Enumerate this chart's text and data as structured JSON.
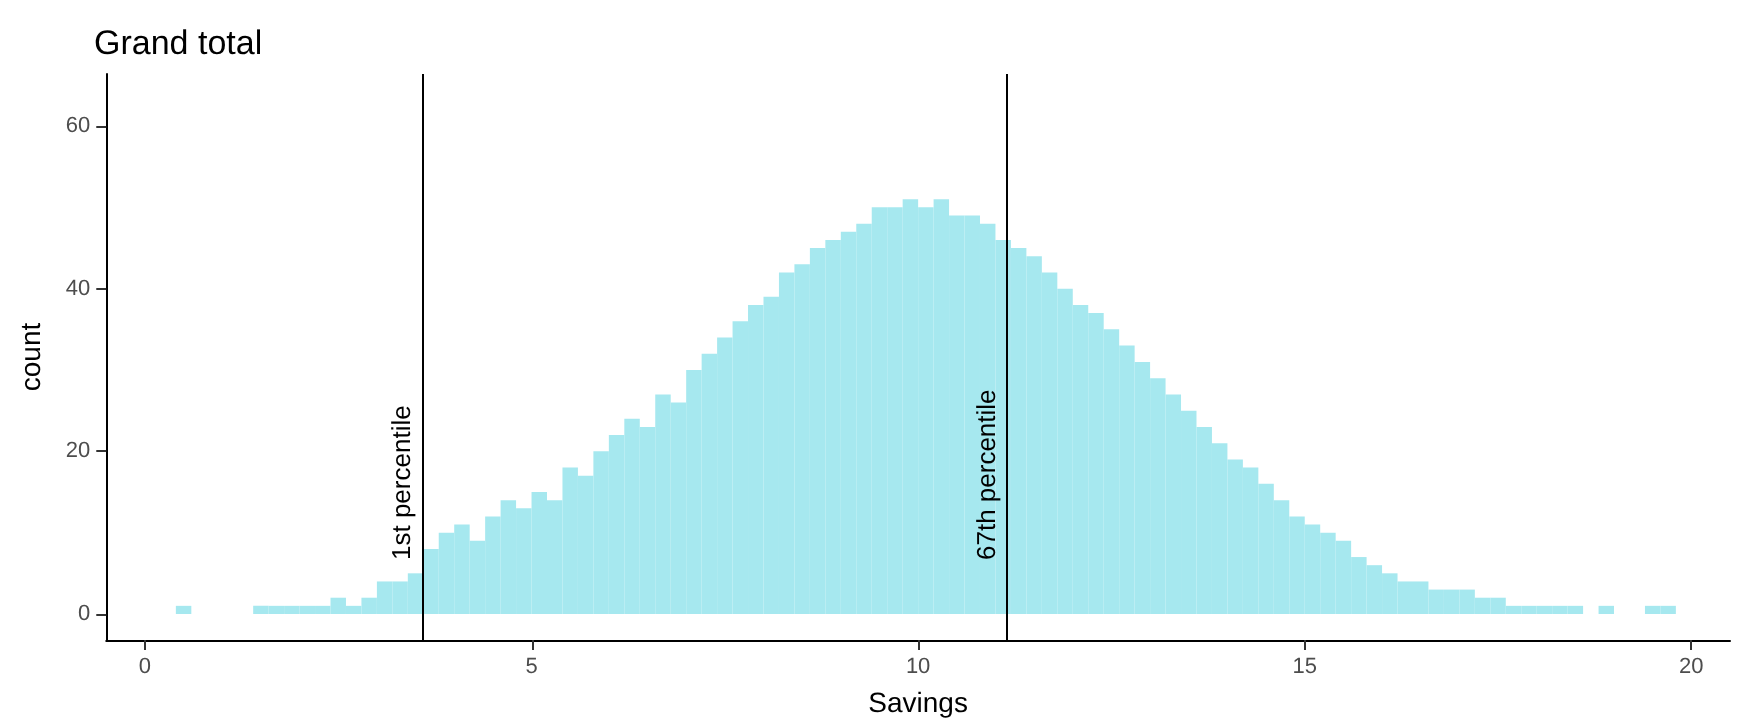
{
  "chart_data": {
    "type": "histogram",
    "title": "Grand total",
    "xlabel": "Savings",
    "ylabel": "count",
    "color": "#a6e8ef",
    "bins": [
      0.4,
      0.6,
      0.8,
      1.0,
      1.2,
      1.4,
      1.6,
      1.8,
      2.0,
      2.2,
      2.4,
      2.6,
      2.8,
      3.0,
      3.2,
      3.4,
      3.6,
      3.8,
      4.0,
      4.2,
      4.4,
      4.6,
      4.8,
      5.0,
      5.2,
      5.4,
      5.6,
      5.8,
      6.0,
      6.2,
      6.4,
      6.6,
      6.8,
      7.0,
      7.2,
      7.4,
      7.6,
      7.8,
      8.0,
      8.2,
      8.4,
      8.6,
      8.8,
      9.0,
      9.2,
      9.4,
      9.6,
      9.8,
      10.0,
      10.2,
      10.4,
      10.6,
      10.8,
      11.0,
      11.2,
      11.4,
      11.6,
      11.8,
      12.0,
      12.2,
      12.4,
      12.6,
      12.8,
      13.0,
      13.2,
      13.4,
      13.6,
      13.8,
      14.0,
      14.2,
      14.4,
      14.6,
      14.8,
      15.0,
      15.2,
      15.4,
      15.6,
      15.8,
      16.0,
      16.2,
      16.4,
      16.6,
      16.8,
      17.0,
      17.2,
      17.4,
      17.6,
      17.8,
      18.0,
      18.2,
      18.4,
      18.6,
      18.8,
      19.0,
      19.2,
      19.4,
      19.6,
      19.8
    ],
    "values": [
      1,
      0,
      0,
      0,
      0,
      1,
      1,
      1,
      1,
      1,
      2,
      1,
      2,
      4,
      4,
      5,
      8,
      10,
      11,
      9,
      12,
      14,
      13,
      15,
      14,
      18,
      17,
      20,
      22,
      24,
      23,
      27,
      26,
      30,
      32,
      34,
      36,
      38,
      39,
      42,
      43,
      45,
      46,
      47,
      48,
      50,
      50,
      51,
      50,
      51,
      49,
      49,
      48,
      46,
      45,
      44,
      42,
      40,
      38,
      37,
      35,
      33,
      31,
      29,
      27,
      25,
      23,
      21,
      19,
      18,
      16,
      14,
      12,
      11,
      10,
      9,
      7,
      6,
      5,
      4,
      4,
      3,
      3,
      3,
      2,
      2,
      1,
      1,
      1,
      1,
      1,
      0,
      1,
      0,
      0,
      1,
      1
    ],
    "xlim": [
      -0.5,
      20.5
    ],
    "xticks": [
      0,
      5,
      10,
      15,
      20
    ],
    "ylim": [
      -3.2,
      66.4
    ],
    "yticks": [
      0,
      20,
      40,
      60
    ],
    "grid": false,
    "ref_lines": [
      {
        "axis": "x",
        "value": 3.58,
        "label": "1st percentile",
        "color": "#000000"
      },
      {
        "axis": "x",
        "value": 11.15,
        "label": "67th percentile",
        "color": "#000000"
      }
    ]
  }
}
